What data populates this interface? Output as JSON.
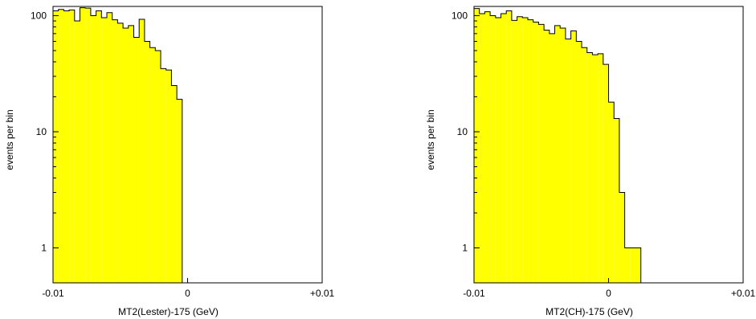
{
  "chart_data": [
    {
      "type": "bar",
      "histogram": true,
      "title": "",
      "xlabel": "MT2(Lester)-175  (GeV)",
      "ylabel": "events per bin",
      "xlim": [
        -0.01,
        0.01
      ],
      "ylim": [
        0.5,
        120
      ],
      "yscale": "log",
      "grid": false,
      "fill_color": "#ffff00",
      "edge_color": "#000000",
      "x_tick_labels": [
        "-0.01",
        "0",
        "+0.01"
      ],
      "y_tick_labels": [
        "1",
        "10",
        "100"
      ],
      "bin_width": 0.0004,
      "bin_edges_start": -0.01,
      "values": [
        110,
        113,
        110,
        112,
        90,
        117,
        116,
        100,
        110,
        96,
        106,
        92,
        86,
        78,
        82,
        65,
        93,
        60,
        53,
        50,
        35,
        34,
        25,
        19
      ]
    },
    {
      "type": "bar",
      "histogram": true,
      "title": "",
      "xlabel": "MT2(CH)-175  (GeV)",
      "ylabel": "events per bin",
      "xlim": [
        -0.01,
        0.01
      ],
      "ylim": [
        0.5,
        120
      ],
      "yscale": "log",
      "grid": false,
      "fill_color": "#ffff00",
      "edge_color": "#000000",
      "x_tick_labels": [
        "-0.01",
        "0",
        "+0.01"
      ],
      "y_tick_labels": [
        "1",
        "10",
        "100"
      ],
      "bin_width": 0.0004,
      "bin_edges_start": -0.01,
      "values": [
        115,
        104,
        108,
        100,
        96,
        104,
        110,
        91,
        98,
        96,
        92,
        88,
        84,
        75,
        70,
        82,
        78,
        63,
        74,
        60,
        53,
        48,
        46,
        47,
        38,
        18,
        13,
        3,
        1,
        1,
        1
      ]
    }
  ]
}
